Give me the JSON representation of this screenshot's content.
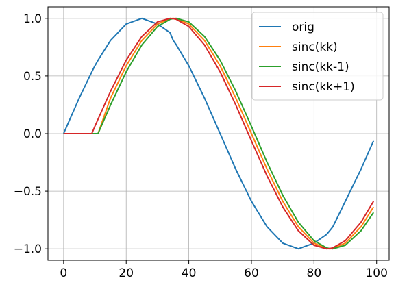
{
  "chart_data": {
    "type": "line",
    "title": "",
    "xlabel": "",
    "ylabel": "",
    "xlim": [
      -5,
      104
    ],
    "ylim": [
      -1.1,
      1.1
    ],
    "grid": true,
    "legend_position": "top-right",
    "x_ticks": [
      0,
      20,
      40,
      60,
      80,
      100
    ],
    "x_tick_labels": [
      "0",
      "20",
      "40",
      "60",
      "80",
      "100"
    ],
    "y_ticks": [
      1.0,
      0.5,
      0.0,
      -0.5,
      -1.0
    ],
    "y_tick_labels": [
      "1.0",
      "0.5",
      "0.0",
      "−0.5",
      "−1.0"
    ],
    "x": [
      0,
      5,
      9,
      10,
      11,
      15,
      20,
      25,
      30,
      34,
      35,
      36,
      40,
      45,
      50,
      55,
      60,
      65,
      70,
      75,
      80,
      84,
      85,
      86,
      90,
      95,
      99
    ],
    "series": [
      {
        "name": "orig",
        "color": "#1f77b4",
        "values": [
          0.0,
          0.309,
          0.536,
          0.588,
          0.637,
          0.809,
          0.951,
          1.0,
          0.951,
          0.876,
          0.809,
          0.77,
          0.588,
          0.309,
          0.0,
          -0.309,
          -0.588,
          -0.809,
          -0.951,
          -1.0,
          -0.951,
          -0.876,
          -0.843,
          -0.809,
          -0.588,
          -0.309,
          -0.063
        ]
      },
      {
        "name": "sinc(kk)",
        "color": "#ff7f0e",
        "values": [
          0.0,
          0.0,
          0.0,
          0.0,
          0.0,
          0.309,
          0.588,
          0.809,
          0.951,
          0.998,
          1.0,
          0.998,
          0.951,
          0.809,
          0.588,
          0.309,
          0.0,
          -0.309,
          -0.588,
          -0.809,
          -0.951,
          -0.998,
          -1.0,
          -0.998,
          -0.951,
          -0.809,
          -0.637
        ]
      },
      {
        "name": "sinc(kk-1)",
        "color": "#2ca02c",
        "values": [
          0.0,
          0.0,
          0.0,
          0.0,
          0.0,
          0.249,
          0.536,
          0.77,
          0.93,
          0.992,
          0.998,
          1.0,
          0.969,
          0.844,
          0.637,
          0.368,
          0.063,
          -0.249,
          -0.536,
          -0.77,
          -0.93,
          -0.992,
          -0.998,
          -1.0,
          -0.969,
          -0.844,
          -0.685
        ]
      },
      {
        "name": "sinc(kk+1)",
        "color": "#d62728",
        "values": [
          0.0,
          0.0,
          0.0,
          0.063,
          0.125,
          0.368,
          0.637,
          0.844,
          0.969,
          1.0,
          0.998,
          0.992,
          0.93,
          0.77,
          0.536,
          0.249,
          -0.063,
          -0.368,
          -0.637,
          -0.844,
          -0.969,
          -1.0,
          -0.998,
          -0.992,
          -0.93,
          -0.77,
          -0.588
        ]
      }
    ]
  }
}
